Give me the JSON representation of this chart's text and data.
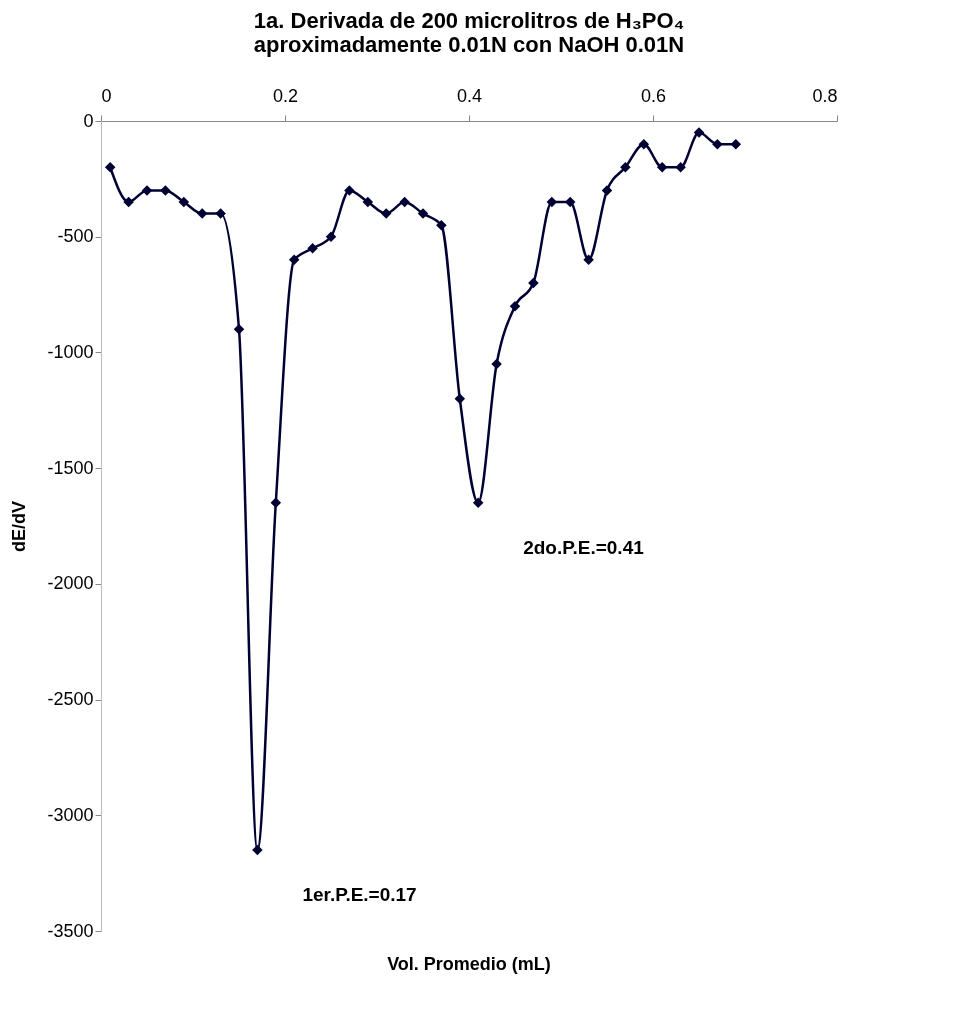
{
  "chart_data": {
    "type": "line",
    "title": [
      "1a. Derivada de 200 microlitros de H₃PO₄",
      "aproximadamente 0.01N con NaOH 0.01N"
    ],
    "xlabel": "Vol. Promedio (mL)",
    "ylabel": "dE/dV",
    "x": [
      0.01,
      0.03,
      0.05,
      0.07,
      0.09,
      0.11,
      0.13,
      0.15,
      0.17,
      0.19,
      0.21,
      0.23,
      0.25,
      0.27,
      0.29,
      0.31,
      0.33,
      0.35,
      0.37,
      0.39,
      0.41,
      0.43,
      0.45,
      0.47,
      0.49,
      0.51,
      0.53,
      0.55,
      0.57,
      0.59,
      0.61,
      0.63,
      0.65,
      0.67,
      0.69
    ],
    "series": [
      {
        "color": "#000033",
        "values": [
          -200,
          -350,
          -300,
          -300,
          -350,
          -400,
          -400,
          -900,
          -3150,
          -1650,
          -600,
          -550,
          -500,
          -300,
          -350,
          -400,
          -350,
          -400,
          -450,
          -1200,
          -1650,
          -1050,
          -800,
          -700,
          -350,
          -350,
          -600,
          -300,
          -200,
          -100,
          -200,
          -200,
          -50,
          -100,
          -100
        ]
      }
    ],
    "xlim": [
      0,
      0.8
    ],
    "xticks": [
      0,
      0.2,
      0.4,
      0.6,
      0.8
    ],
    "ylim": [
      -3500,
      0
    ],
    "yticks": [
      -3500,
      -3000,
      -2500,
      -2000,
      -1500,
      -1000,
      -500,
      0
    ],
    "marker": "diamond",
    "line_style": "solid",
    "grid": false,
    "annotations": [
      {
        "text": "1er.P.E.=0.17",
        "x": 0.17,
        "y": -3150
      },
      {
        "text": "2do.P.E.=0.41",
        "x": 0.41,
        "y": -1650
      }
    ]
  }
}
